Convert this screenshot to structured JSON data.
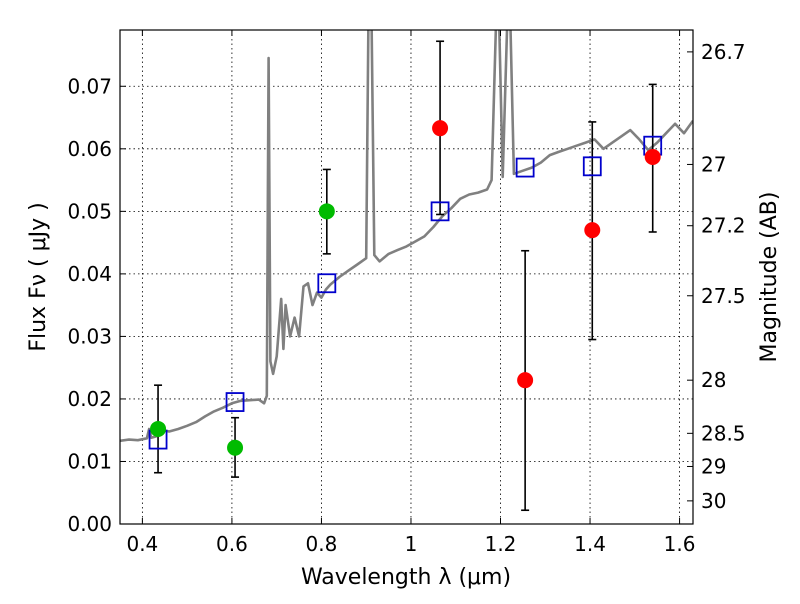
{
  "chart_data": {
    "type": "scatter",
    "xlabel": "Wavelength  λ (μm)",
    "ylabel": "Flux  Fν  ( μJy )",
    "ylabel_right": "Magnitude (AB)",
    "xlim": [
      0.35,
      1.63
    ],
    "ylim": [
      0.0,
      0.079
    ],
    "grid": true,
    "x_ticks": [
      0.4,
      0.6,
      0.8,
      1.0,
      1.2,
      1.4,
      1.6
    ],
    "x_tick_labels": [
      "0.4",
      "0.6",
      "0.8",
      "1",
      "1.2",
      "1.4",
      "1.6"
    ],
    "y_ticks": [
      0.0,
      0.01,
      0.02,
      0.03,
      0.04,
      0.05,
      0.06,
      0.07
    ],
    "y_tick_labels": [
      "0.00",
      "0.01",
      "0.02",
      "0.03",
      "0.04",
      "0.05",
      "0.06",
      "0.07"
    ],
    "right_ticks": [
      {
        "flux": 0.0755,
        "label": "26.7"
      },
      {
        "flux": 0.0575,
        "label": "27"
      },
      {
        "flux": 0.0477,
        "label": "27.2"
      },
      {
        "flux": 0.0365,
        "label": "27.5"
      },
      {
        "flux": 0.023,
        "label": "28"
      },
      {
        "flux": 0.0145,
        "label": "28.5"
      },
      {
        "flux": 0.0092,
        "label": "29"
      },
      {
        "flux": 0.0037,
        "label": "30"
      }
    ],
    "model_spectrum": {
      "color": "#808080",
      "points": [
        [
          0.35,
          0.0133
        ],
        [
          0.37,
          0.0135
        ],
        [
          0.39,
          0.0134
        ],
        [
          0.41,
          0.0137
        ],
        [
          0.415,
          0.0152
        ],
        [
          0.42,
          0.0138
        ],
        [
          0.43,
          0.014
        ],
        [
          0.445,
          0.015
        ],
        [
          0.46,
          0.0148
        ],
        [
          0.48,
          0.0152
        ],
        [
          0.5,
          0.0157
        ],
        [
          0.52,
          0.0163
        ],
        [
          0.54,
          0.0172
        ],
        [
          0.56,
          0.018
        ],
        [
          0.58,
          0.0186
        ],
        [
          0.6,
          0.0193
        ],
        [
          0.62,
          0.0197
        ],
        [
          0.64,
          0.0198
        ],
        [
          0.66,
          0.0199
        ],
        [
          0.672,
          0.0193
        ],
        [
          0.678,
          0.0205
        ],
        [
          0.682,
          0.0745
        ],
        [
          0.686,
          0.026
        ],
        [
          0.692,
          0.024
        ],
        [
          0.7,
          0.0268
        ],
        [
          0.71,
          0.036
        ],
        [
          0.715,
          0.028
        ],
        [
          0.72,
          0.035
        ],
        [
          0.73,
          0.03
        ],
        [
          0.74,
          0.033
        ],
        [
          0.75,
          0.03
        ],
        [
          0.76,
          0.038
        ],
        [
          0.77,
          0.0385
        ],
        [
          0.78,
          0.035
        ],
        [
          0.79,
          0.037
        ],
        [
          0.8,
          0.0362
        ],
        [
          0.81,
          0.0375
        ],
        [
          0.82,
          0.0383
        ],
        [
          0.84,
          0.0395
        ],
        [
          0.86,
          0.0405
        ],
        [
          0.88,
          0.0415
        ],
        [
          0.9,
          0.0425
        ],
        [
          0.905,
          0.08
        ],
        [
          0.912,
          0.08
        ],
        [
          0.918,
          0.043
        ],
        [
          0.93,
          0.042
        ],
        [
          0.95,
          0.0432
        ],
        [
          0.97,
          0.0438
        ],
        [
          0.99,
          0.0444
        ],
        [
          1.01,
          0.0452
        ],
        [
          1.03,
          0.046
        ],
        [
          1.05,
          0.0475
        ],
        [
          1.07,
          0.0492
        ],
        [
          1.09,
          0.0505
        ],
        [
          1.11,
          0.052
        ],
        [
          1.13,
          0.0527
        ],
        [
          1.15,
          0.053
        ],
        [
          1.17,
          0.0535
        ],
        [
          1.18,
          0.055
        ],
        [
          1.19,
          0.08
        ],
        [
          1.197,
          0.08
        ],
        [
          1.205,
          0.0555
        ],
        [
          1.215,
          0.08
        ],
        [
          1.222,
          0.08
        ],
        [
          1.23,
          0.056
        ],
        [
          1.25,
          0.0565
        ],
        [
          1.27,
          0.057
        ],
        [
          1.29,
          0.0578
        ],
        [
          1.31,
          0.059
        ],
        [
          1.33,
          0.0595
        ],
        [
          1.35,
          0.06
        ],
        [
          1.37,
          0.0605
        ],
        [
          1.39,
          0.061
        ],
        [
          1.41,
          0.0615
        ],
        [
          1.43,
          0.06
        ],
        [
          1.45,
          0.061
        ],
        [
          1.47,
          0.062
        ],
        [
          1.49,
          0.063
        ],
        [
          1.51,
          0.0615
        ],
        [
          1.53,
          0.0598
        ],
        [
          1.55,
          0.061
        ],
        [
          1.57,
          0.0625
        ],
        [
          1.59,
          0.064
        ],
        [
          1.61,
          0.0625
        ],
        [
          1.63,
          0.0645
        ]
      ]
    },
    "series": [
      {
        "marker": "open-square",
        "color": "#0000cc",
        "points": [
          {
            "x": 0.435,
            "y": 0.0135
          },
          {
            "x": 0.607,
            "y": 0.0195
          },
          {
            "x": 0.812,
            "y": 0.0385
          },
          {
            "x": 1.065,
            "y": 0.05
          },
          {
            "x": 1.255,
            "y": 0.057
          },
          {
            "x": 1.405,
            "y": 0.0572
          },
          {
            "x": 1.54,
            "y": 0.0605
          }
        ]
      },
      {
        "marker": "filled-circle",
        "color": "#00bb00",
        "points": [
          {
            "x": 0.435,
            "y": 0.0152,
            "lo": 0.0082,
            "hi": 0.0222
          },
          {
            "x": 0.607,
            "y": 0.0122,
            "lo": 0.0075,
            "hi": 0.017
          },
          {
            "x": 0.812,
            "y": 0.05,
            "lo": 0.0432,
            "hi": 0.0567
          }
        ]
      },
      {
        "marker": "filled-circle",
        "color": "#ff0000",
        "points": [
          {
            "x": 1.065,
            "y": 0.0633,
            "lo": 0.0495,
            "hi": 0.0772
          },
          {
            "x": 1.255,
            "y": 0.023,
            "lo": 0.0022,
            "hi": 0.0437
          },
          {
            "x": 1.405,
            "y": 0.047,
            "lo": 0.0295,
            "hi": 0.0643
          },
          {
            "x": 1.54,
            "y": 0.0587,
            "lo": 0.0467,
            "hi": 0.0703
          }
        ]
      }
    ]
  }
}
